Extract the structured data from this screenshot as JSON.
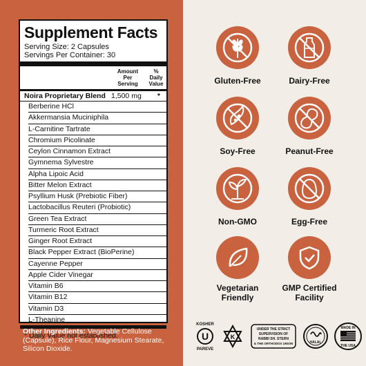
{
  "supplement_facts": {
    "title": "Supplement Facts",
    "serving_size": "Serving Size: 2 Capsules",
    "servings_per_container": "Servings Per Container: 30",
    "col_amount": [
      "Amount",
      "Per",
      "Serving"
    ],
    "col_dv": [
      "%",
      "Daily",
      "Value"
    ],
    "blend_name": "Noira Proprietary Blend",
    "blend_amount": "1,500 mg",
    "blend_dv": "*",
    "ingredients": [
      "Berberine HCl",
      "Akkermansia Muciniphila",
      "L-Carnitine Tartrate",
      "Chromium Picolinate",
      "Ceylon Cinnamon Extract",
      "Gymnema Sylvestre",
      "Alpha Lipoic Acid",
      "Bitter Melon Extract",
      "Psyllium Husk (Prebiotic Fiber)",
      "Lactobacillus Reuteri (Probiotic)",
      "Green Tea Extract",
      "Turmeric Root Extract",
      "Ginger Root Extract",
      "Black Pepper Extract (BioPerine)",
      "Cayenne Pepper",
      "Apple Cider Vinegar",
      "Vitamin B6",
      "Vitamin B12",
      "Vitamin D3",
      "L-Theanine"
    ],
    "dv_note": "* Daily Value not established."
  },
  "other_ingredients": {
    "label": "Other Ingredients:",
    "text": " Vegetable Cellulose (Capsule), Rice Flour, Magnesium Stearate, Silicon Dioxide."
  },
  "badges": [
    {
      "label": "Gluten-Free",
      "icon": "wheat-crossed-icon"
    },
    {
      "label": "Dairy-Free",
      "icon": "milk-bottle-crossed-icon"
    },
    {
      "label": "Soy-Free",
      "icon": "soybean-crossed-icon"
    },
    {
      "label": "Peanut-Free",
      "icon": "peanut-crossed-icon"
    },
    {
      "label": "Non-GMO",
      "icon": "sprout-icon"
    },
    {
      "label": "Egg-Free",
      "icon": "egg-crossed-icon"
    },
    {
      "label": "Vegetarian\nFriendly",
      "line1": "Vegetarian",
      "line2": "Friendly",
      "icon": "leaf-icon"
    },
    {
      "label": "GMP Certified\nFacility",
      "line1": "GMP Certified",
      "line2": "Facility",
      "icon": "shield-check-icon"
    }
  ],
  "certifications": {
    "kosher_top": "KOSHER",
    "kosher_bottom": "PAREVE",
    "supervision_text": [
      "UNDER THE STRICT",
      "SUPERVISION OF",
      "RABBI SH. STERN",
      "& THE ORTHODOX UNION"
    ],
    "halal": "HALAL",
    "made_in_usa_top": "MADE IN",
    "made_in_usa_bottom": "THE USA"
  },
  "colors": {
    "accent": "#c8623f",
    "right_bg": "#f2ede6",
    "text": "#111111"
  }
}
